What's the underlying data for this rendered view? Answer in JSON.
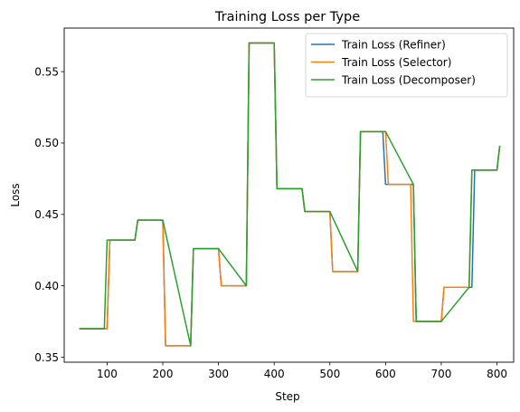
{
  "chart_data": {
    "type": "line",
    "title": "Training Loss per Type",
    "xlabel": "Step",
    "ylabel": "Loss",
    "xlim": [
      23,
      830
    ],
    "ylim": [
      0.3465,
      0.5805
    ],
    "xticks": [
      100,
      200,
      300,
      400,
      500,
      600,
      700,
      800
    ],
    "yticks": [
      0.35,
      0.4,
      0.45,
      0.5,
      0.55
    ],
    "ytick_labels": [
      "0.35",
      "0.40",
      "0.45",
      "0.50",
      "0.55"
    ],
    "grid": false,
    "legend_position": "top-right",
    "series": [
      {
        "name": "Train Loss (Refiner)",
        "color": "#1f77b4",
        "x": [
          50,
          95,
          100,
          105,
          145,
          150,
          155,
          195,
          200,
          205,
          245,
          250,
          255,
          295,
          300,
          305,
          345,
          350,
          355,
          395,
          400,
          405,
          440,
          445,
          450,
          455,
          495,
          500,
          505,
          545,
          550,
          555,
          590,
          595,
          600,
          605,
          650,
          655,
          660,
          695,
          700,
          705,
          750,
          755,
          760,
          795,
          800,
          805
        ],
        "y": [
          0.37,
          0.37,
          0.37,
          0.432,
          0.432,
          0.432,
          0.446,
          0.446,
          0.446,
          0.358,
          0.358,
          0.358,
          0.426,
          0.426,
          0.426,
          0.4,
          0.4,
          0.4,
          0.57,
          0.57,
          0.57,
          0.468,
          0.468,
          0.468,
          0.468,
          0.452,
          0.452,
          0.452,
          0.41,
          0.41,
          0.41,
          0.508,
          0.508,
          0.508,
          0.471,
          0.471,
          0.471,
          0.375,
          0.375,
          0.375,
          0.375,
          0.399,
          0.399,
          0.399,
          0.481,
          0.481,
          0.481,
          0.498
        ]
      },
      {
        "name": "Train Loss (Selector)",
        "color": "#ff7f0e",
        "x": [
          50,
          95,
          100,
          105,
          145,
          150,
          155,
          195,
          200,
          205,
          245,
          250,
          255,
          295,
          300,
          305,
          345,
          350,
          355,
          395,
          400,
          405,
          445,
          450,
          455,
          495,
          500,
          505,
          545,
          550,
          555,
          595,
          600,
          605,
          640,
          645,
          650,
          655,
          695,
          700,
          705,
          745,
          750,
          755,
          795,
          800,
          805
        ],
        "y": [
          0.37,
          0.37,
          0.37,
          0.432,
          0.432,
          0.432,
          0.446,
          0.446,
          0.446,
          0.358,
          0.358,
          0.358,
          0.426,
          0.426,
          0.426,
          0.4,
          0.4,
          0.4,
          0.57,
          0.57,
          0.57,
          0.468,
          0.468,
          0.468,
          0.452,
          0.452,
          0.452,
          0.41,
          0.41,
          0.41,
          0.508,
          0.508,
          0.508,
          0.471,
          0.471,
          0.471,
          0.375,
          0.375,
          0.375,
          0.375,
          0.399,
          0.399,
          0.399,
          0.481,
          0.481,
          0.481,
          0.498
        ]
      },
      {
        "name": "Train Loss (Decomposer)",
        "color": "#2ca02c",
        "x": [
          50,
          95,
          100,
          150,
          155,
          200,
          250,
          255,
          300,
          350,
          355,
          400,
          405,
          450,
          455,
          500,
          550,
          555,
          600,
          650,
          655,
          700,
          750,
          755,
          800,
          805
        ],
        "y": [
          0.37,
          0.37,
          0.432,
          0.432,
          0.446,
          0.446,
          0.358,
          0.426,
          0.426,
          0.4,
          0.57,
          0.57,
          0.468,
          0.468,
          0.452,
          0.452,
          0.41,
          0.508,
          0.508,
          0.471,
          0.375,
          0.375,
          0.399,
          0.481,
          0.481,
          0.498
        ]
      }
    ]
  }
}
